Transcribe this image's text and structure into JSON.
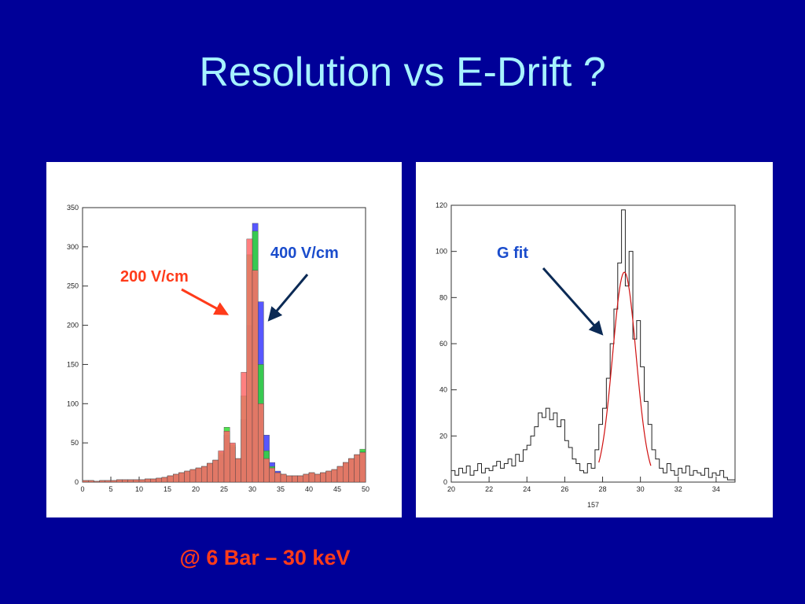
{
  "slide": {
    "title": "Resolution vs E-Drift ?",
    "footer": "@ 6 Bar – 30 keV"
  },
  "colors": {
    "background": "#000098",
    "title": "#a6f2ff",
    "footer": "#ff3b1a",
    "red_annotation": "#ff3b1a",
    "blue_annotation": "#1a4ccc",
    "arrow_dark": "#0b2a55"
  },
  "chart_data": [
    {
      "type": "histogram",
      "title": "",
      "xlabel": "",
      "ylabel": "",
      "xlim": [
        0,
        50
      ],
      "ylim": [
        0,
        350
      ],
      "xticks": [
        "0",
        "5",
        "10",
        "15",
        "20",
        "25",
        "30",
        "35",
        "40",
        "45",
        "50"
      ],
      "yticks": [
        "0",
        "50",
        "100",
        "150",
        "200",
        "250",
        "300",
        "350"
      ],
      "annotations": [
        {
          "text": "200 V/cm",
          "color": "#ff3b1a"
        },
        {
          "text": "400 V/cm",
          "color": "#1a4ccc"
        }
      ],
      "x": [
        0,
        1,
        2,
        3,
        4,
        5,
        6,
        7,
        8,
        9,
        10,
        11,
        12,
        13,
        14,
        15,
        16,
        17,
        18,
        19,
        20,
        21,
        22,
        23,
        24,
        25,
        26,
        27,
        28,
        29,
        30,
        31,
        32,
        33,
        34,
        35,
        36,
        37,
        38,
        39,
        40,
        41,
        42,
        43,
        44,
        45,
        46,
        47,
        48,
        49
      ],
      "series": [
        {
          "color": "#3a3aff",
          "values": [
            2,
            2,
            1,
            2,
            2,
            2,
            3,
            3,
            3,
            3,
            3,
            4,
            4,
            5,
            6,
            8,
            10,
            12,
            14,
            16,
            18,
            20,
            24,
            28,
            35,
            60,
            45,
            30,
            80,
            200,
            330,
            230,
            60,
            25,
            14,
            10,
            8,
            8,
            8,
            10,
            12,
            10,
            12,
            14,
            16,
            20,
            25,
            30,
            35,
            40
          ]
        },
        {
          "color": "#33dd33",
          "values": [
            2,
            2,
            1,
            2,
            2,
            2,
            3,
            3,
            3,
            3,
            3,
            4,
            4,
            5,
            6,
            8,
            10,
            12,
            14,
            16,
            18,
            20,
            24,
            28,
            38,
            70,
            48,
            30,
            110,
            290,
            320,
            150,
            40,
            20,
            12,
            10,
            8,
            8,
            8,
            10,
            12,
            10,
            12,
            14,
            16,
            20,
            25,
            30,
            35,
            42
          ]
        },
        {
          "color": "#ff6a6a",
          "values": [
            2,
            2,
            1,
            2,
            2,
            2,
            3,
            3,
            3,
            3,
            3,
            4,
            4,
            5,
            6,
            8,
            10,
            12,
            14,
            16,
            18,
            20,
            24,
            28,
            40,
            65,
            50,
            30,
            140,
            310,
            270,
            100,
            30,
            18,
            12,
            10,
            8,
            8,
            8,
            10,
            12,
            10,
            12,
            14,
            16,
            20,
            25,
            30,
            35,
            38
          ]
        }
      ]
    },
    {
      "type": "histogram",
      "title": "",
      "xlabel": "157",
      "ylabel": "",
      "xlim": [
        20,
        35
      ],
      "ylim": [
        0,
        120
      ],
      "xticks": [
        "20",
        "22",
        "24",
        "26",
        "28",
        "30",
        "32",
        "34"
      ],
      "yticks": [
        "0",
        "20",
        "40",
        "60",
        "80",
        "100",
        "120"
      ],
      "annotations": [
        {
          "text": "G fit",
          "color": "#1a4ccc"
        }
      ],
      "fit": {
        "name": "G fit",
        "amplitude": 91,
        "mean": 29.15,
        "sigma": 0.62,
        "color": "#d01010"
      },
      "x": [
        20.0,
        20.2,
        20.4,
        20.6,
        20.8,
        21.0,
        21.2,
        21.4,
        21.6,
        21.8,
        22.0,
        22.2,
        22.4,
        22.6,
        22.8,
        23.0,
        23.2,
        23.4,
        23.6,
        23.8,
        24.0,
        24.2,
        24.4,
        24.6,
        24.8,
        25.0,
        25.2,
        25.4,
        25.6,
        25.8,
        26.0,
        26.2,
        26.4,
        26.6,
        26.8,
        27.0,
        27.2,
        27.4,
        27.6,
        27.8,
        28.0,
        28.2,
        28.4,
        28.6,
        28.8,
        29.0,
        29.2,
        29.4,
        29.6,
        29.8,
        30.0,
        30.2,
        30.4,
        30.6,
        30.8,
        31.0,
        31.2,
        31.4,
        31.6,
        31.8,
        32.0,
        32.2,
        32.4,
        32.6,
        32.8,
        33.0,
        33.2,
        33.4,
        33.6,
        33.8,
        34.0,
        34.2,
        34.4,
        34.6,
        34.8
      ],
      "values": [
        5,
        3,
        6,
        4,
        7,
        3,
        5,
        8,
        4,
        6,
        5,
        7,
        9,
        6,
        8,
        10,
        7,
        12,
        9,
        14,
        16,
        20,
        24,
        30,
        28,
        32,
        27,
        30,
        24,
        27,
        18,
        15,
        10,
        8,
        5,
        4,
        8,
        6,
        14,
        25,
        32,
        45,
        60,
        75,
        95,
        118,
        85,
        100,
        62,
        70,
        50,
        35,
        25,
        14,
        10,
        6,
        4,
        8,
        5,
        3,
        6,
        4,
        7,
        3,
        5,
        4,
        3,
        6,
        2,
        4,
        3,
        5,
        2,
        1,
        1
      ]
    }
  ]
}
